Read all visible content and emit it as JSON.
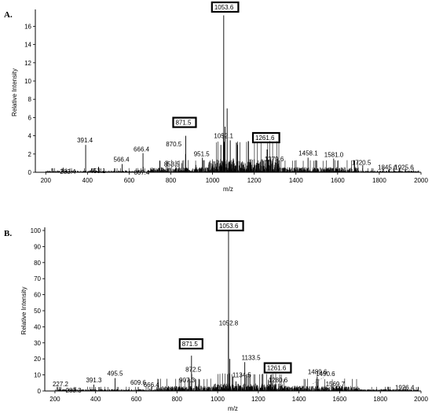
{
  "chart_data": [
    {
      "type": "bar",
      "panel_label": "A.",
      "xlabel": "m/z",
      "ylabel": "Relative Intensity",
      "xlim": [
        150,
        2000
      ],
      "ylim": [
        0,
        17.5
      ],
      "x_ticks": [
        200,
        400,
        600,
        800,
        1000,
        1200,
        1400,
        1600,
        1800,
        2000
      ],
      "y_ticks": [
        0,
        2,
        4,
        6,
        8,
        10,
        12,
        14,
        16
      ],
      "peaks": [
        {
          "x": 283.4,
          "y": 0.5,
          "label": "283.4"
        },
        {
          "x": 391.4,
          "y": 3.0,
          "label": "391.4"
        },
        {
          "x": 453.1,
          "y": 0.6,
          "label": "453.1"
        },
        {
          "x": 566.4,
          "y": 0.9,
          "label": "566.4"
        },
        {
          "x": 666.4,
          "y": 2.1,
          "label": "666.4"
        },
        {
          "x": 667.4,
          "y": 0.6,
          "label": "667.4"
        },
        {
          "x": 853.5,
          "y": 1.0,
          "label": "853.5"
        },
        {
          "x": 870.5,
          "y": 2.0,
          "label": "870.5"
        },
        {
          "x": 871.5,
          "y": 4.0,
          "label": "871.5",
          "boxed": true
        },
        {
          "x": 951.5,
          "y": 1.6,
          "label": "951.5"
        },
        {
          "x": 1052.1,
          "y": 4.2,
          "label": "1052.1"
        },
        {
          "x": 1053.6,
          "y": 17.2,
          "label": "1053.6",
          "boxed": true
        },
        {
          "x": 1261.6,
          "y": 2.5,
          "label": "1261.6",
          "boxed": true
        },
        {
          "x": 1279.6,
          "y": 1.4,
          "label": "1279.6"
        },
        {
          "x": 1458.1,
          "y": 1.6,
          "label": "1458.1"
        },
        {
          "x": 1581.0,
          "y": 1.5,
          "label": "1581.0"
        },
        {
          "x": 1720.5,
          "y": 0.8,
          "label": "1720.5"
        },
        {
          "x": 1845.6,
          "y": 0.3,
          "label": "1845.6"
        },
        {
          "x": 1925.6,
          "y": 0.3,
          "label": "1925.6"
        }
      ],
      "minor_peaks": [
        {
          "x": 1040,
          "y": 3.0
        },
        {
          "x": 1060,
          "y": 5.0
        },
        {
          "x": 1070,
          "y": 7.0
        },
        {
          "x": 1085,
          "y": 3.5
        },
        {
          "x": 1120,
          "y": 3.0
        },
        {
          "x": 1010,
          "y": 1.2
        },
        {
          "x": 1100,
          "y": 1.5
        },
        {
          "x": 1140,
          "y": 1.1
        },
        {
          "x": 1180,
          "y": 0.9
        },
        {
          "x": 920,
          "y": 0.8
        },
        {
          "x": 1220,
          "y": 0.7
        }
      ]
    },
    {
      "type": "bar",
      "panel_label": "B.",
      "xlabel": "m/z",
      "ylabel": "Relative Intensity",
      "xlim": [
        150,
        2000
      ],
      "ylim": [
        0,
        100
      ],
      "x_ticks": [
        200,
        400,
        600,
        800,
        1000,
        1200,
        1400,
        1600,
        1800,
        2000
      ],
      "y_ticks": [
        0,
        10,
        20,
        30,
        40,
        50,
        60,
        70,
        80,
        90,
        100
      ],
      "peaks": [
        {
          "x": 227.2,
          "y": 1.5,
          "label": "227.2"
        },
        {
          "x": 283.3,
          "y": 1.0,
          "label": "283.3"
        },
        {
          "x": 391.3,
          "y": 4.0,
          "label": "391.3"
        },
        {
          "x": 495.5,
          "y": 8.0,
          "label": "495.5"
        },
        {
          "x": 609.6,
          "y": 2.5,
          "label": "609.6"
        },
        {
          "x": 666.4,
          "y": 1.5,
          "label": "666.4"
        },
        {
          "x": 871.5,
          "y": 22.0,
          "label": "871.5",
          "boxed": true
        },
        {
          "x": 872.5,
          "y": 10.5,
          "label": "872.5"
        },
        {
          "x": 907.3,
          "y": 4.0,
          "label": "907.3"
        },
        {
          "x": 1052.8,
          "y": 41.0,
          "label": "1052.8"
        },
        {
          "x": 1053.6,
          "y": 100,
          "label": "1053.6",
          "boxed": true
        },
        {
          "x": 1133.5,
          "y": 18.0,
          "label": "1133.5"
        },
        {
          "x": 1134.5,
          "y": 8.5,
          "label": "1134.5"
        },
        {
          "x": 1261.6,
          "y": 10.0,
          "label": "1261.6",
          "boxed": true
        },
        {
          "x": 1280.6,
          "y": 4.0,
          "label": "1280.6"
        },
        {
          "x": 1489.6,
          "y": 9.0,
          "label": "1489.6"
        },
        {
          "x": 1490.6,
          "y": 3.5,
          "label": "1490.6"
        },
        {
          "x": 1569.7,
          "y": 1.5,
          "label": "1569.7"
        },
        {
          "x": 1926.4,
          "y": 0.8,
          "label": "1926.4"
        }
      ],
      "minor_peaks": [
        {
          "x": 1060,
          "y": 20.0
        },
        {
          "x": 1075,
          "y": 9.0
        },
        {
          "x": 1090,
          "y": 6.0
        },
        {
          "x": 1250,
          "y": 7.0
        },
        {
          "x": 1270,
          "y": 5.0
        },
        {
          "x": 1035,
          "y": 4.0
        },
        {
          "x": 1150,
          "y": 3.0
        },
        {
          "x": 990,
          "y": 2.5
        },
        {
          "x": 1210,
          "y": 2.0
        }
      ]
    }
  ]
}
